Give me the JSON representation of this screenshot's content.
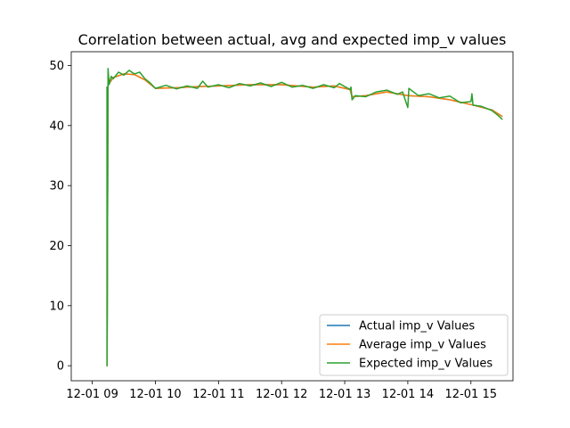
{
  "chart_data": {
    "type": "line",
    "title": "Correlation between actual, avg and expected imp_v values",
    "xlabel": "",
    "ylabel": "",
    "x_axis": {
      "type": "time",
      "range": [
        "2023-12-01T08:40",
        "2023-12-01T15:40"
      ],
      "ticks": [
        {
          "value": "2023-12-01T09:00",
          "label": "12-01 09"
        },
        {
          "value": "2023-12-01T10:00",
          "label": "12-01 10"
        },
        {
          "value": "2023-12-01T11:00",
          "label": "12-01 11"
        },
        {
          "value": "2023-12-01T12:00",
          "label": "12-01 12"
        },
        {
          "value": "2023-12-01T13:00",
          "label": "12-01 13"
        },
        {
          "value": "2023-12-01T14:00",
          "label": "12-01 14"
        },
        {
          "value": "2023-12-01T15:00",
          "label": "12-01 15"
        }
      ]
    },
    "y_axis": {
      "range": [
        -2.5,
        52.3
      ],
      "ticks": [
        {
          "value": 0,
          "label": "0"
        },
        {
          "value": 10,
          "label": "10"
        },
        {
          "value": 20,
          "label": "20"
        },
        {
          "value": 30,
          "label": "30"
        },
        {
          "value": 40,
          "label": "40"
        },
        {
          "value": 50,
          "label": "50"
        }
      ]
    },
    "grid": false,
    "legend_position": "lower-right",
    "series": [
      {
        "name": "Actual imp_v Values",
        "color": "#1f77b4",
        "points": [
          [
            "2023-12-01T09:14",
            46.5
          ],
          [
            "2023-12-01T09:14",
            0
          ],
          [
            "2023-12-01T09:15",
            48.8
          ],
          [
            "2023-12-01T09:16",
            47.0
          ],
          [
            "2023-12-01T09:20",
            48.0
          ],
          [
            "2023-12-01T09:30",
            48.6
          ],
          [
            "2023-12-01T09:40",
            48.5
          ],
          [
            "2023-12-01T09:50",
            47.6
          ],
          [
            "2023-12-01T10:00",
            46.2
          ],
          [
            "2023-12-01T10:20",
            46.3
          ],
          [
            "2023-12-01T10:40",
            46.5
          ],
          [
            "2023-12-01T11:00",
            46.6
          ],
          [
            "2023-12-01T11:30",
            46.8
          ],
          [
            "2023-12-01T12:00",
            46.8
          ],
          [
            "2023-12-01T12:30",
            46.4
          ],
          [
            "2023-12-01T12:50",
            46.6
          ],
          [
            "2023-12-01T13:05",
            46.0
          ],
          [
            "2023-12-01T13:07",
            44.8
          ],
          [
            "2023-12-01T13:20",
            45.0
          ],
          [
            "2023-12-01T13:40",
            45.6
          ],
          [
            "2023-12-01T14:00",
            45.0
          ],
          [
            "2023-12-01T14:20",
            44.8
          ],
          [
            "2023-12-01T14:40",
            44.3
          ],
          [
            "2023-12-01T15:00",
            43.5
          ],
          [
            "2023-12-01T15:20",
            42.6
          ],
          [
            "2023-12-01T15:30",
            41.5
          ]
        ]
      },
      {
        "name": "Average imp_v Values",
        "color": "#ff7f0e",
        "points": [
          [
            "2023-12-01T09:14",
            46.5
          ],
          [
            "2023-12-01T09:14",
            0
          ],
          [
            "2023-12-01T09:15",
            48.8
          ],
          [
            "2023-12-01T09:16",
            47.0
          ],
          [
            "2023-12-01T09:20",
            48.0
          ],
          [
            "2023-12-01T09:30",
            48.6
          ],
          [
            "2023-12-01T09:40",
            48.5
          ],
          [
            "2023-12-01T09:50",
            47.6
          ],
          [
            "2023-12-01T10:00",
            46.2
          ],
          [
            "2023-12-01T10:20",
            46.3
          ],
          [
            "2023-12-01T10:40",
            46.5
          ],
          [
            "2023-12-01T11:00",
            46.6
          ],
          [
            "2023-12-01T11:30",
            46.8
          ],
          [
            "2023-12-01T12:00",
            46.8
          ],
          [
            "2023-12-01T12:30",
            46.4
          ],
          [
            "2023-12-01T12:50",
            46.6
          ],
          [
            "2023-12-01T13:05",
            46.0
          ],
          [
            "2023-12-01T13:07",
            44.8
          ],
          [
            "2023-12-01T13:20",
            45.0
          ],
          [
            "2023-12-01T13:40",
            45.6
          ],
          [
            "2023-12-01T14:00",
            45.0
          ],
          [
            "2023-12-01T14:20",
            44.8
          ],
          [
            "2023-12-01T14:40",
            44.3
          ],
          [
            "2023-12-01T15:00",
            43.5
          ],
          [
            "2023-12-01T15:20",
            42.6
          ],
          [
            "2023-12-01T15:30",
            41.5
          ]
        ]
      },
      {
        "name": "Expected imp_v Values",
        "color": "#2ca02c",
        "points": [
          [
            "2023-12-01T09:14",
            46.5
          ],
          [
            "2023-12-01T09:14",
            0
          ],
          [
            "2023-12-01T09:15",
            49.5
          ],
          [
            "2023-12-01T09:16",
            46.8
          ],
          [
            "2023-12-01T09:18",
            48.2
          ],
          [
            "2023-12-01T09:20",
            47.8
          ],
          [
            "2023-12-01T09:25",
            48.9
          ],
          [
            "2023-12-01T09:30",
            48.4
          ],
          [
            "2023-12-01T09:35",
            49.2
          ],
          [
            "2023-12-01T09:40",
            48.6
          ],
          [
            "2023-12-01T09:45",
            48.9
          ],
          [
            "2023-12-01T09:50",
            47.8
          ],
          [
            "2023-12-01T09:55",
            47.1
          ],
          [
            "2023-12-01T10:00",
            46.2
          ],
          [
            "2023-12-01T10:10",
            46.7
          ],
          [
            "2023-12-01T10:20",
            46.1
          ],
          [
            "2023-12-01T10:30",
            46.6
          ],
          [
            "2023-12-01T10:40",
            46.2
          ],
          [
            "2023-12-01T10:45",
            47.4
          ],
          [
            "2023-12-01T10:50",
            46.4
          ],
          [
            "2023-12-01T11:00",
            46.8
          ],
          [
            "2023-12-01T11:10",
            46.3
          ],
          [
            "2023-12-01T11:20",
            47.0
          ],
          [
            "2023-12-01T11:30",
            46.6
          ],
          [
            "2023-12-01T11:40",
            47.1
          ],
          [
            "2023-12-01T11:50",
            46.5
          ],
          [
            "2023-12-01T12:00",
            47.2
          ],
          [
            "2023-12-01T12:10",
            46.4
          ],
          [
            "2023-12-01T12:20",
            46.7
          ],
          [
            "2023-12-01T12:30",
            46.2
          ],
          [
            "2023-12-01T12:40",
            46.8
          ],
          [
            "2023-12-01T12:50",
            46.3
          ],
          [
            "2023-12-01T12:55",
            47.0
          ],
          [
            "2023-12-01T13:05",
            46.0
          ],
          [
            "2023-12-01T13:06",
            46.4
          ],
          [
            "2023-12-01T13:07",
            44.3
          ],
          [
            "2023-12-01T13:10",
            45.0
          ],
          [
            "2023-12-01T13:20",
            44.8
          ],
          [
            "2023-12-01T13:30",
            45.6
          ],
          [
            "2023-12-01T13:40",
            45.9
          ],
          [
            "2023-12-01T13:50",
            45.2
          ],
          [
            "2023-12-01T13:55",
            45.6
          ],
          [
            "2023-12-01T14:00",
            43.0
          ],
          [
            "2023-12-01T14:01",
            46.2
          ],
          [
            "2023-12-01T14:10",
            45.0
          ],
          [
            "2023-12-01T14:20",
            45.3
          ],
          [
            "2023-12-01T14:30",
            44.6
          ],
          [
            "2023-12-01T14:40",
            44.9
          ],
          [
            "2023-12-01T14:50",
            43.8
          ],
          [
            "2023-12-01T15:00",
            44.0
          ],
          [
            "2023-12-01T15:01",
            45.3
          ],
          [
            "2023-12-01T15:02",
            43.4
          ],
          [
            "2023-12-01T15:10",
            43.2
          ],
          [
            "2023-12-01T15:20",
            42.5
          ],
          [
            "2023-12-01T15:25",
            41.8
          ],
          [
            "2023-12-01T15:30",
            41.0
          ]
        ]
      }
    ]
  }
}
